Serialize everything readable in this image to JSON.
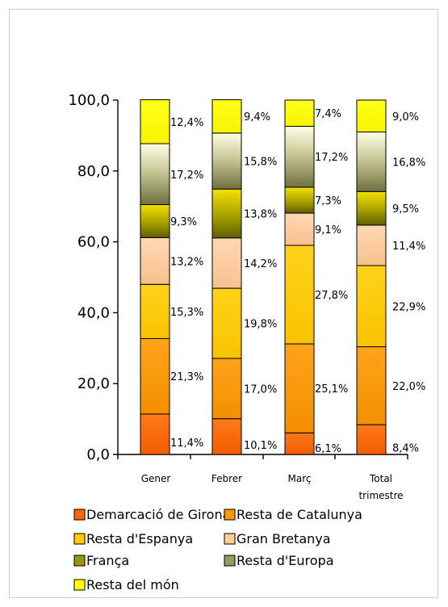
{
  "chart_data": {
    "type": "bar",
    "stacked": true,
    "title": "",
    "xlabel": "",
    "ylabel": "",
    "ylim": [
      0,
      100
    ],
    "yticks": [
      "0,0",
      "20,0",
      "40,0",
      "60,0",
      "80,0",
      "100,0"
    ],
    "categories": [
      [
        "Gener"
      ],
      [
        "Febrer"
      ],
      [
        "Març"
      ],
      [
        "Total",
        "trimestre"
      ]
    ],
    "series": [
      {
        "name": "Demarcació de Girona",
        "values": [
          11.4,
          10.1,
          6.1,
          8.4
        ],
        "labels": [
          "11,4%",
          "10,1%",
          "6,1%",
          "8,4%"
        ],
        "color": "#FF6600"
      },
      {
        "name": "Resta de Catalunya",
        "values": [
          21.3,
          17.0,
          25.1,
          22.0
        ],
        "labels": [
          "21,3%",
          "17,0%",
          "25,1%",
          "22,0%"
        ],
        "color": "#FF9900"
      },
      {
        "name": "Resta d'Espanya",
        "values": [
          15.3,
          19.8,
          27.8,
          22.9
        ],
        "labels": [
          "15,3%",
          "19,8%",
          "27,8%",
          "22,9%"
        ],
        "color": "#FFCC00"
      },
      {
        "name": "Gran Bretanya",
        "values": [
          13.2,
          14.2,
          9.1,
          11.4
        ],
        "labels": [
          "13,2%",
          "14,2%",
          "9,1%",
          "11,4%"
        ],
        "color": "#FFCC99"
      },
      {
        "name": "França",
        "values": [
          9.3,
          13.8,
          7.3,
          9.5
        ],
        "labels": [
          "9,3%",
          "13,8%",
          "7,3%",
          "9,5%"
        ],
        "color": "#999900"
      },
      {
        "name": "Resta d'Europa",
        "values": [
          17.2,
          15.8,
          17.2,
          16.8
        ],
        "labels": [
          "17,2%",
          "15,8%",
          "17,2%",
          "16,8%"
        ],
        "color": "#999966"
      },
      {
        "name": "Resta del món",
        "values": [
          12.4,
          9.4,
          7.4,
          9.0
        ],
        "labels": [
          "12,4%",
          "9,4%",
          "7,4%",
          "9,0%"
        ],
        "color": "#FFFF00"
      }
    ],
    "grid": false,
    "legend_position": "bottom"
  }
}
